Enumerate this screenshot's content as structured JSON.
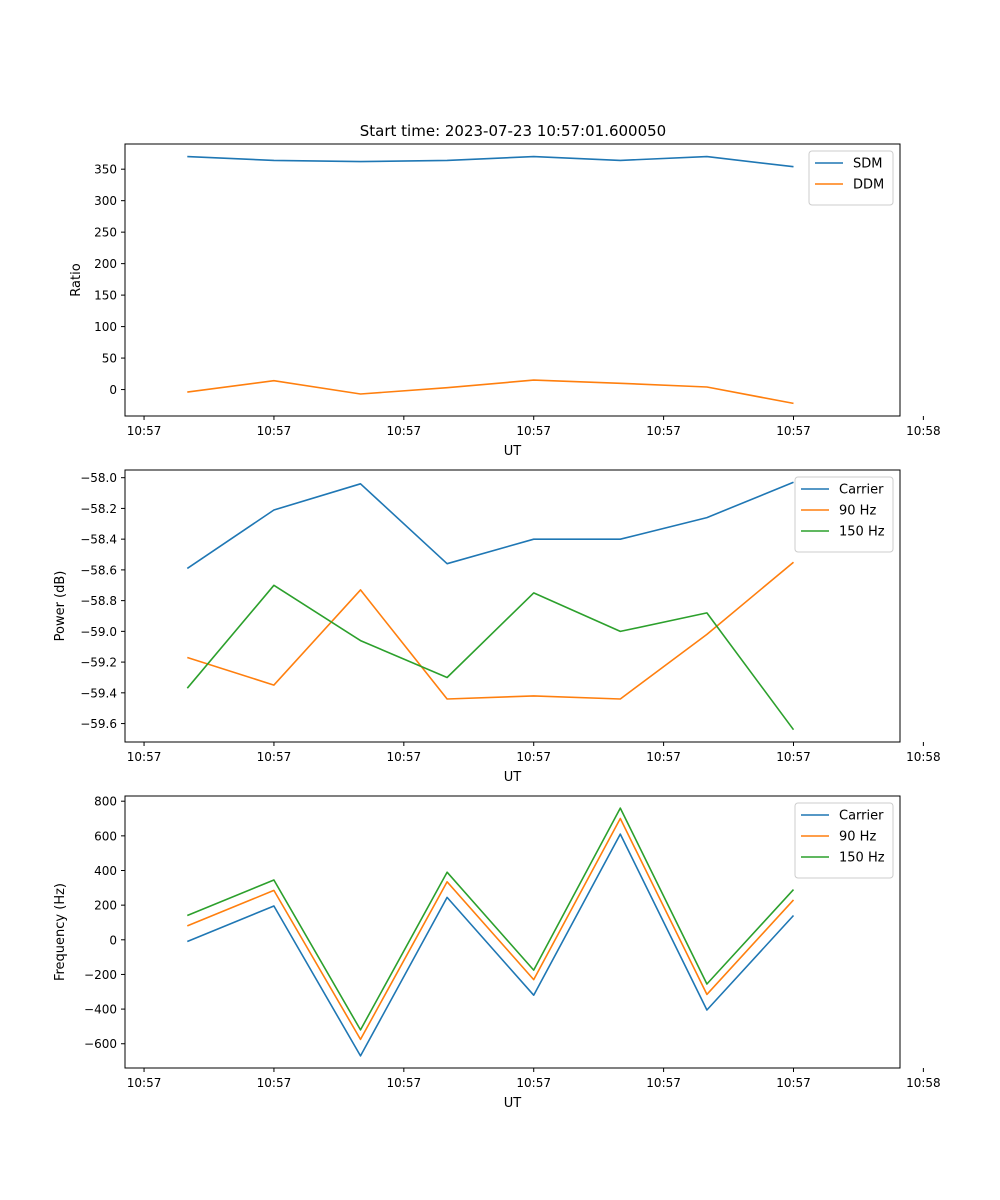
{
  "title": "Start time: 2023-07-23 10:57:01.600050",
  "chart_data": [
    {
      "type": "line",
      "title": "Start time: 2023-07-23 10:57:01.600050",
      "xlabel": "UT",
      "ylabel": "Ratio",
      "x": [
        1,
        2,
        3,
        4,
        5,
        6,
        7,
        8
      ],
      "xlim": [
        0.28,
        9.23
      ],
      "x_ticks": [
        0.5,
        2,
        3.5,
        5,
        6.5,
        8,
        9.5
      ],
      "x_tick_labels": [
        "10:57",
        "10:57",
        "10:57",
        "10:57",
        "10:57",
        "10:57",
        "10:58"
      ],
      "ylim": [
        -42,
        390
      ],
      "y_ticks": [
        0,
        50,
        100,
        150,
        200,
        250,
        300,
        350
      ],
      "y_tick_labels": [
        "0",
        "50",
        "100",
        "150",
        "200",
        "250",
        "300",
        "350"
      ],
      "legend_position": "top-right",
      "series": [
        {
          "name": "SDM",
          "color": "#1f77b4",
          "values": [
            370,
            364,
            362,
            364,
            370,
            364,
            370,
            354
          ]
        },
        {
          "name": "DDM",
          "color": "#ff7f0e",
          "values": [
            -4,
            14,
            -7,
            3,
            15,
            10,
            4,
            -22
          ]
        }
      ]
    },
    {
      "type": "line",
      "title": "",
      "xlabel": "UT",
      "ylabel": "Power (dB)",
      "x": [
        1,
        2,
        3,
        4,
        5,
        6,
        7,
        8
      ],
      "xlim": [
        0.28,
        9.23
      ],
      "x_ticks": [
        0.5,
        2,
        3.5,
        5,
        6.5,
        8,
        9.5
      ],
      "x_tick_labels": [
        "10:57",
        "10:57",
        "10:57",
        "10:57",
        "10:57",
        "10:57",
        "10:58"
      ],
      "ylim": [
        -59.72,
        -57.95
      ],
      "y_ticks": [
        -59.6,
        -59.4,
        -59.2,
        -59.0,
        -58.8,
        -58.6,
        -58.4,
        -58.2,
        -58.0
      ],
      "y_tick_labels": [
        "−59.6",
        "−59.4",
        "−59.2",
        "−59.0",
        "−58.8",
        "−58.6",
        "−58.4",
        "−58.2",
        "−58.0"
      ],
      "legend_position": "top-right",
      "series": [
        {
          "name": "Carrier",
          "color": "#1f77b4",
          "values": [
            -58.59,
            -58.21,
            -58.04,
            -58.56,
            -58.4,
            -58.4,
            -58.26,
            -58.03
          ]
        },
        {
          "name": "90 Hz",
          "color": "#ff7f0e",
          "values": [
            -59.17,
            -59.35,
            -58.73,
            -59.44,
            -59.42,
            -59.44,
            -59.02,
            -58.55
          ]
        },
        {
          "name": "150 Hz",
          "color": "#2ca02c",
          "values": [
            -59.37,
            -58.7,
            -59.06,
            -59.3,
            -58.75,
            -59.0,
            -58.88,
            -59.64
          ]
        }
      ]
    },
    {
      "type": "line",
      "title": "",
      "xlabel": "UT",
      "ylabel": "Frequency (Hz)",
      "x": [
        1,
        2,
        3,
        4,
        5,
        6,
        7,
        8
      ],
      "xlim": [
        0.28,
        9.23
      ],
      "x_ticks": [
        0.5,
        2,
        3.5,
        5,
        6.5,
        8,
        9.5
      ],
      "x_tick_labels": [
        "10:57",
        "10:57",
        "10:57",
        "10:57",
        "10:57",
        "10:57",
        "10:58"
      ],
      "ylim": [
        -740,
        830
      ],
      "y_ticks": [
        -600,
        -400,
        -200,
        0,
        200,
        400,
        600,
        800
      ],
      "y_tick_labels": [
        "−600",
        "−400",
        "−200",
        "0",
        "200",
        "400",
        "600",
        "800"
      ],
      "legend_position": "top-right",
      "series": [
        {
          "name": "Carrier",
          "color": "#1f77b4",
          "values": [
            -10,
            195,
            -670,
            245,
            -320,
            610,
            -405,
            140
          ]
        },
        {
          "name": "90 Hz",
          "color": "#ff7f0e",
          "values": [
            80,
            285,
            -575,
            335,
            -230,
            700,
            -315,
            230
          ]
        },
        {
          "name": "150 Hz",
          "color": "#2ca02c",
          "values": [
            140,
            345,
            -520,
            390,
            -175,
            760,
            -255,
            290
          ]
        }
      ]
    }
  ]
}
